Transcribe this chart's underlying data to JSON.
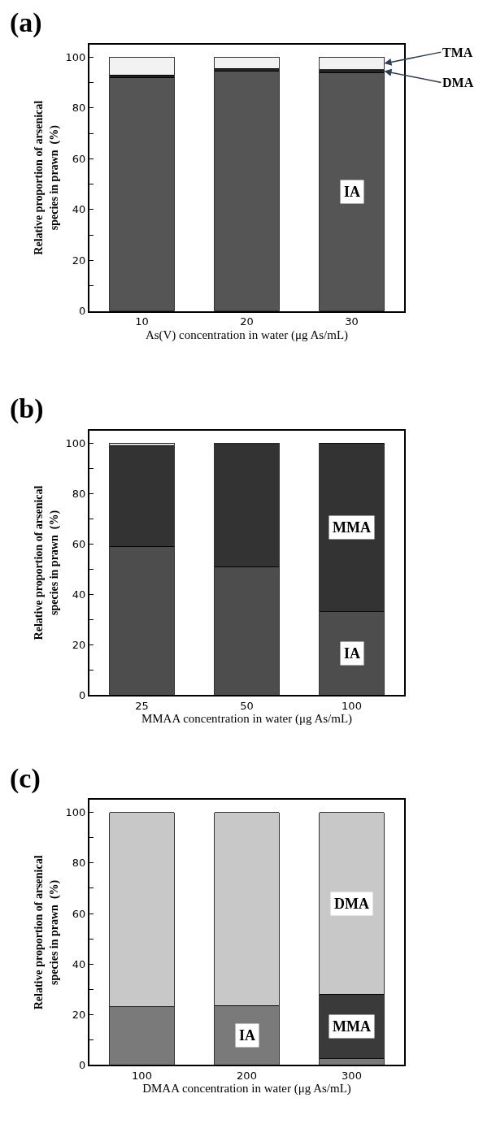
{
  "chart_data": [
    {
      "type": "bar",
      "title": "(a)",
      "xlabel": "As(V) concentration in water (μg As/mL)",
      "ylabel": "Relative proportion of arsenical\nspecies in prawn  (%)",
      "categories": [
        "10",
        "20",
        "30"
      ],
      "stacked": true,
      "series": [
        {
          "name": "IA",
          "color": "#555555",
          "values": [
            92,
            94.5,
            94
          ]
        },
        {
          "name": "DMA",
          "color": "#222222",
          "values": [
            1,
            1,
            1
          ]
        },
        {
          "name": "TMA",
          "color": "#f2f2f2",
          "values": [
            7,
            4.5,
            5
          ]
        }
      ],
      "ylim": [
        0,
        105
      ],
      "yticks": [
        0,
        {
          "value": 10,
          "label": null
        },
        20,
        {
          "value": 30,
          "label": null
        },
        40,
        {
          "value": 50,
          "label": null
        },
        60,
        {
          "value": 70,
          "label": null
        },
        80,
        {
          "value": 90,
          "label": null
        },
        100
      ],
      "legend": false
    },
    {
      "type": "bar",
      "title": "(b)",
      "xlabel": "MMAA concentration in water (μg As/mL)",
      "ylabel": "Relative proportion of arsenical\nspecies in prawn  (%)",
      "categories": [
        "25",
        "50",
        "100"
      ],
      "stacked": true,
      "series": [
        {
          "name": "IA",
          "color": "#4d4d4d",
          "values": [
            59,
            51,
            33
          ]
        },
        {
          "name": "MMA",
          "color": "#333333",
          "values": [
            40,
            48.5,
            67
          ]
        },
        {
          "color": "#dddddd",
          "values": [
            1,
            0.5,
            null
          ]
        }
      ],
      "ylim": [
        0,
        105
      ],
      "yticks": [
        0,
        {
          "value": 10,
          "label": null
        },
        20,
        {
          "value": 30,
          "label": null
        },
        40,
        {
          "value": 50,
          "label": null
        },
        60,
        {
          "value": 70,
          "label": null
        },
        80,
        {
          "value": 90,
          "label": null
        },
        100
      ],
      "legend": false
    },
    {
      "type": "bar",
      "title": "(c)",
      "xlabel": "DMAA concentration in water (μg As/mL)",
      "ylabel": "Relative proportion of arsenical\nspecies in prawn  (%)",
      "categories": [
        "100",
        "200",
        "300"
      ],
      "stacked": true,
      "series": [
        {
          "name": "IA",
          "color": "#7a7a7a",
          "values": [
            23,
            23.5,
            2.5
          ]
        },
        {
          "name": "MMA",
          "color": "#3a3a3a",
          "values": [
            null,
            null,
            25.5
          ]
        },
        {
          "name": "DMA",
          "color": "#c8c8c8",
          "values": [
            77,
            76.5,
            72
          ]
        }
      ],
      "ylim": [
        0,
        105
      ],
      "yticks": [
        0,
        {
          "value": 10,
          "label": null
        },
        20,
        {
          "value": 30,
          "label": null
        },
        40,
        {
          "value": 50,
          "label": null
        },
        60,
        {
          "value": 70,
          "label": null
        },
        80,
        {
          "value": 90,
          "label": null
        },
        100
      ],
      "legend": false
    }
  ]
}
